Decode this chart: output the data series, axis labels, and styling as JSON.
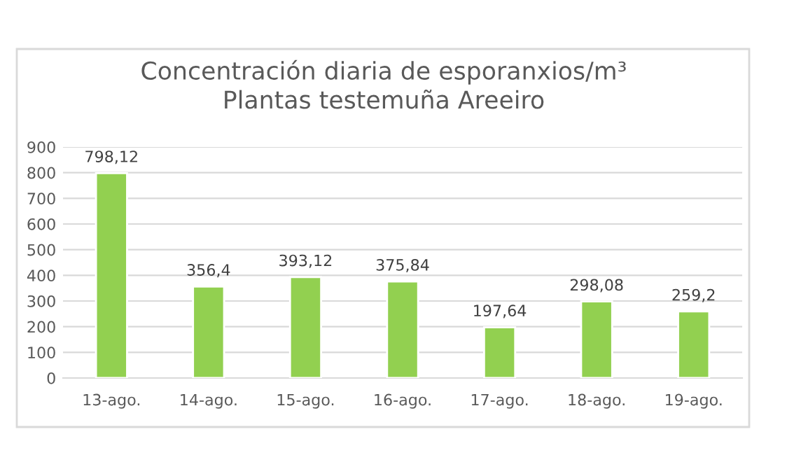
{
  "chart_data": {
    "type": "bar",
    "title": "Concentración diaria de esporanxios/m³\nPlantas testemuña Areeiro",
    "categories": [
      "13-ago.",
      "14-ago.",
      "15-ago.",
      "16-ago.",
      "17-ago.",
      "18-ago.",
      "19-ago."
    ],
    "values": [
      798.12,
      356.4,
      393.12,
      375.84,
      197.64,
      298.08,
      259.2
    ],
    "value_labels": [
      "798,12",
      "356,4",
      "393,12",
      "375,84",
      "197,64",
      "298,08",
      "259,2"
    ],
    "color": "#92d050",
    "ylim": [
      0,
      900
    ],
    "yticks": [
      0,
      100,
      200,
      300,
      400,
      500,
      600,
      700,
      800,
      900
    ],
    "grid": "y",
    "legend": false
  }
}
